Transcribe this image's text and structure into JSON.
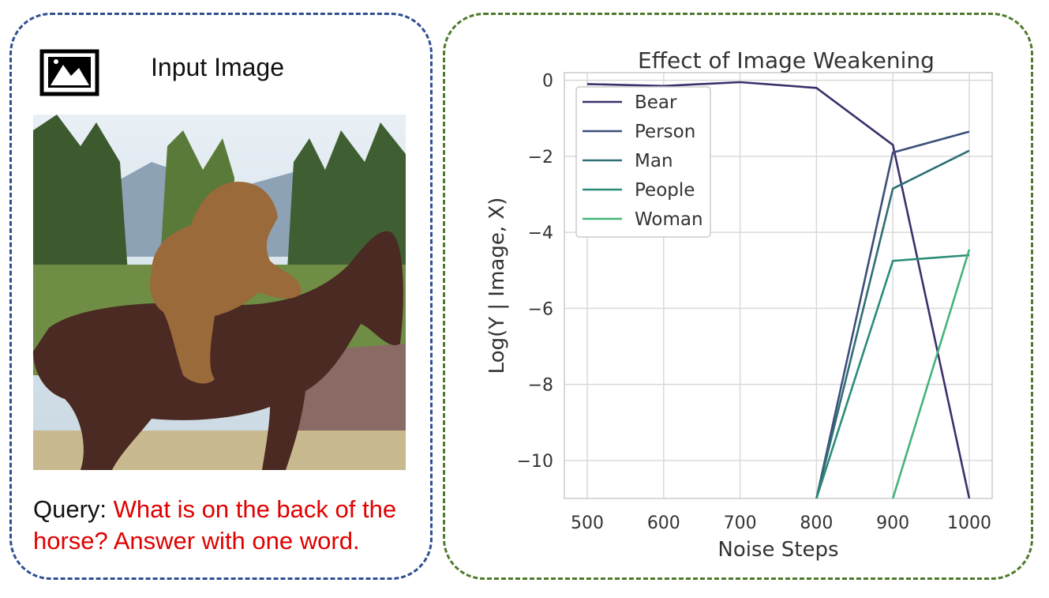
{
  "input_panel": {
    "icon": "image-icon",
    "title": "Input Image",
    "query_label": "Query: ",
    "query_text": "What is on the back of the horse? Answer with one word."
  },
  "colors": {
    "left_border": "#2f4f8f",
    "right_border": "#4e7a2c",
    "query_text": "#e00000"
  },
  "chart_data": {
    "type": "line",
    "title": "Effect of Image Weakening",
    "xlabel": "Noise Steps",
    "ylabel": "Log(Y | Image, X)",
    "xlim": [
      470,
      1030
    ],
    "ylim": [
      -11,
      0.2
    ],
    "xticks": [
      500,
      600,
      700,
      800,
      900,
      1000
    ],
    "yticks": [
      0,
      -2,
      -4,
      -6,
      -8,
      -10
    ],
    "ytick_labels": [
      "0",
      "−2",
      "−4",
      "−6",
      "−8",
      "−10"
    ],
    "grid": true,
    "legend_position": "top-left",
    "series": [
      {
        "name": "Bear",
        "color": "#3d2f6b",
        "x": [
          500,
          600,
          700,
          800,
          900,
          1000
        ],
        "y": [
          -0.1,
          -0.15,
          -0.05,
          -0.2,
          -1.7,
          -11.0
        ]
      },
      {
        "name": "Person",
        "color": "#3b4f7a",
        "x": [
          800,
          900,
          1000
        ],
        "y": [
          -11.0,
          -1.9,
          -1.35
        ]
      },
      {
        "name": "Man",
        "color": "#2f6e75",
        "x": [
          800,
          900,
          1000
        ],
        "y": [
          -11.0,
          -2.85,
          -1.85
        ]
      },
      {
        "name": "People",
        "color": "#2b8c7a",
        "x": [
          800,
          900,
          1000
        ],
        "y": [
          -11.0,
          -4.75,
          -4.6
        ]
      },
      {
        "name": "Woman",
        "color": "#45b27a",
        "x": [
          900,
          1000
        ],
        "y": [
          -11.0,
          -4.45
        ]
      }
    ]
  }
}
